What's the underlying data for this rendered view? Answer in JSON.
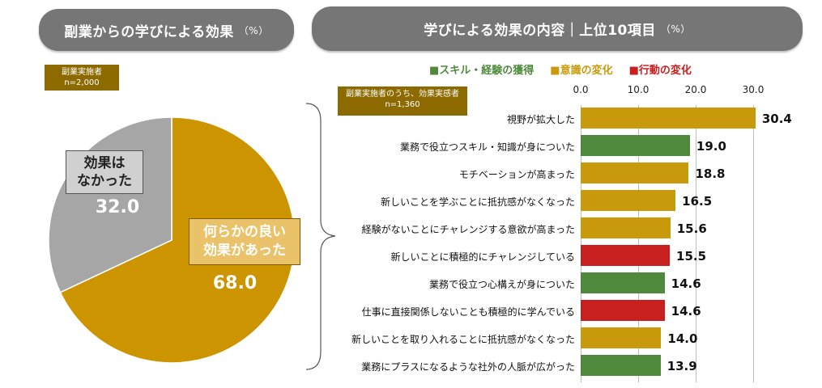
{
  "left_title": {
    "main": "副業からの学びによる効果",
    "unit": "（%）"
  },
  "right_title": {
    "main": "学びによる効果の内容｜上位10項目",
    "unit": "（%）"
  },
  "left_note": {
    "line1": "副業実施者",
    "line2": "n=2,000"
  },
  "right_note": {
    "line1": "副業実施者のうち、効果実感者",
    "line2": "n=1,360"
  },
  "colors": {
    "green": "#4f8a3c",
    "gold": "#c89a0c",
    "red": "#c8201e",
    "gray": "#a6a6a6",
    "pie_gold": "#cc9500"
  },
  "chart_data": [
    {
      "type": "pie",
      "title": "副業からの学びによる効果",
      "slices": [
        {
          "label_line1": "何らかの良い",
          "label_line2": "効果があった",
          "value": 68.0,
          "value_text": "68.0",
          "color": "#cc9500"
        },
        {
          "label_line1": "効果は",
          "label_line2": "なかった",
          "value": 32.0,
          "value_text": "32.0",
          "color": "#a6a6a6"
        }
      ]
    },
    {
      "type": "bar",
      "orientation": "horizontal",
      "title": "学びによる効果の内容｜上位10項目",
      "xlim": [
        0,
        30
      ],
      "ticks": [
        "0.0",
        "10.0",
        "20.0",
        "30.0"
      ],
      "legend": [
        {
          "name": "■スキル・経験の獲得",
          "color": "#4f8a3c"
        },
        {
          "name": "■意識の変化",
          "color": "#c89a0c"
        },
        {
          "name": "■行動の変化",
          "color": "#c8201e"
        }
      ],
      "categories": [
        "視野が拡大した",
        "業務で役立つスキル・知識が身についた",
        "モチベーションが高まった",
        "新しいことを学ぶことに抵抗感がなくなった",
        "経験がないことにチャレンジする意欲が高まった",
        "新しいことに積極的にチャレンジしている",
        "業務で役立つ心構えが身についた",
        "仕事に直接関係しないことも積極的に学んでいる",
        "新しいことを取り入れることに抵抗感がなくなった",
        "業務にプラスになるような社外の人脈が広がった"
      ],
      "values": [
        30.4,
        19.0,
        18.8,
        16.5,
        15.6,
        15.5,
        14.6,
        14.6,
        14.0,
        13.9
      ],
      "value_texts": [
        "30.4",
        "19.0",
        "18.8",
        "16.5",
        "15.6",
        "15.5",
        "14.6",
        "14.6",
        "14.0",
        "13.9"
      ],
      "groups": [
        "gold",
        "green",
        "gold",
        "gold",
        "gold",
        "red",
        "green",
        "red",
        "gold",
        "green"
      ]
    }
  ]
}
